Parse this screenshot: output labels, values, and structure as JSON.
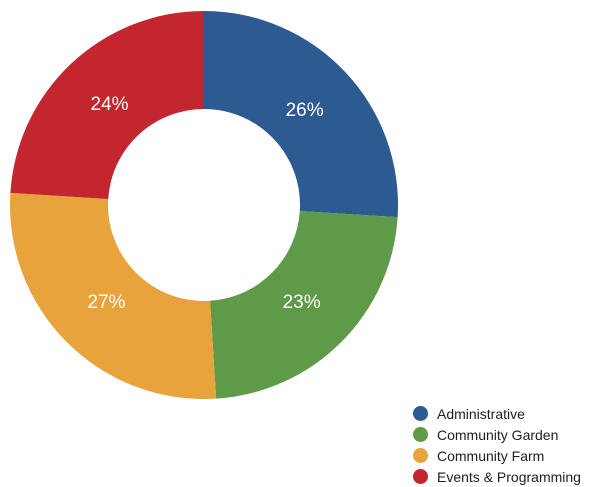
{
  "chart_data": {
    "type": "pie",
    "variant": "donut",
    "categories": [
      "Administrative",
      "Community Garden",
      "Community Farm",
      "Events & Programming"
    ],
    "values": [
      26,
      23,
      27,
      24
    ],
    "value_labels": [
      "26%",
      "23%",
      "27%",
      "24%"
    ],
    "colors": [
      "#2e5a92",
      "#5e9a47",
      "#e8a33c",
      "#c3262e"
    ],
    "legend_position": "bottom-right"
  },
  "legend": {
    "items": [
      {
        "label": "Administrative",
        "color": "#2e5a92"
      },
      {
        "label": "Community Garden",
        "color": "#5e9a47"
      },
      {
        "label": "Community Farm",
        "color": "#e8a33c"
      },
      {
        "label": "Events & Programming",
        "color": "#c3262e"
      }
    ]
  }
}
